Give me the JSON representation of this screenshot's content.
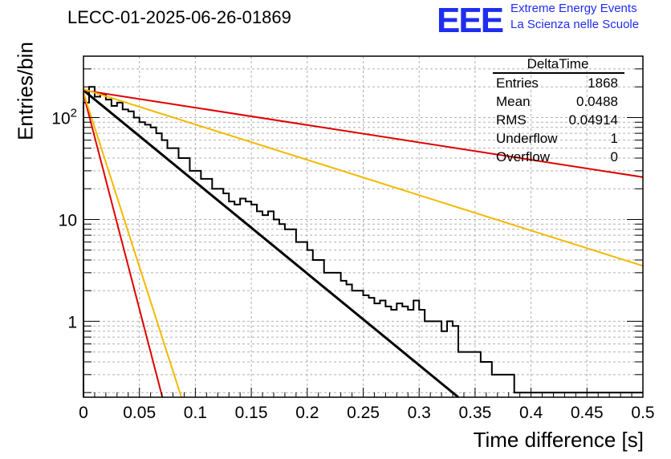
{
  "header": {
    "title": "LECC-01-2025-06-26-01869",
    "logo": "EEE",
    "brand_line1": "Extreme Energy Events",
    "brand_line2": "La Scienza nelle Scuole"
  },
  "stats_box": {
    "name": "DeltaTime",
    "rows": [
      {
        "label": "Entries",
        "value": "1868"
      },
      {
        "label": "Mean",
        "value": "0.0488"
      },
      {
        "label": "RMS",
        "value": "0.04914"
      },
      {
        "label": "Underflow",
        "value": "1"
      },
      {
        "label": "Overflow",
        "value": "0"
      }
    ]
  },
  "colors": {
    "histogram": "#000000",
    "fit": "#000000",
    "red_curve": "#e00000",
    "yellow_curve": "#f5b800",
    "brand": "#1f2df0",
    "grid": "#b0b0b0"
  },
  "chart_data": {
    "type": "line",
    "title": "LECC-01-2025-06-26-01869",
    "xlabel": "Time difference [s]",
    "ylabel": "Entries/bin",
    "xlim": [
      0,
      0.5
    ],
    "ylim": [
      0.18,
      400
    ],
    "y_scale": "log",
    "grid": true,
    "legend": "top-right",
    "x_ticks": [
      "0",
      "0.05",
      "0.1",
      "0.15",
      "0.2",
      "0.25",
      "0.3",
      "0.35",
      "0.4",
      "0.45",
      "0.5"
    ],
    "y_ticks": [
      "1",
      "10",
      "10²"
    ],
    "histogram": {
      "name": "DeltaTime",
      "bin_width": 0.005,
      "values": [
        140,
        200,
        160,
        170,
        150,
        130,
        140,
        120,
        115,
        100,
        90,
        85,
        80,
        70,
        60,
        50,
        50,
        40,
        40,
        30,
        30,
        25,
        25,
        20,
        20,
        18,
        15,
        14,
        16,
        15,
        14,
        12,
        11,
        12,
        10,
        9,
        8,
        8,
        6,
        6,
        5,
        4,
        4,
        3,
        3,
        3,
        2.5,
        2.3,
        2,
        2,
        1.8,
        1.7,
        1.5,
        1.6,
        1.4,
        1.3,
        1.5,
        1.4,
        1.3,
        1.6,
        1.3,
        1,
        1,
        1,
        0.8,
        1,
        0.9,
        0.5,
        0.5,
        0.5,
        0.5,
        0.4,
        0.4,
        0.3,
        0.3,
        0.3,
        0.3,
        0.2,
        0.2,
        0.2,
        0.2,
        0.2,
        0.2,
        0.2,
        0.2,
        0.2,
        0.2,
        0.2,
        0.2,
        0.2,
        0.2,
        0.2,
        0.2,
        0.2,
        0.2,
        0.2,
        0.2,
        0.2,
        0.2,
        0.2
      ]
    },
    "series": [
      {
        "values_x": [
          0,
          0.335
        ],
        "values_y": [
          185,
          0.18
        ]
      },
      {
        "values_x": [
          0,
          0.5
        ],
        "values_y": [
          185,
          26
        ]
      },
      {
        "values_x": [
          0,
          0.5
        ],
        "values_y": [
          190,
          3.5
        ]
      },
      {
        "values_x": [
          0,
          0.0705
        ],
        "values_y": [
          170,
          0.18
        ]
      },
      {
        "values_x": [
          0,
          0.0875
        ],
        "values_y": [
          175,
          0.18
        ]
      }
    ]
  }
}
